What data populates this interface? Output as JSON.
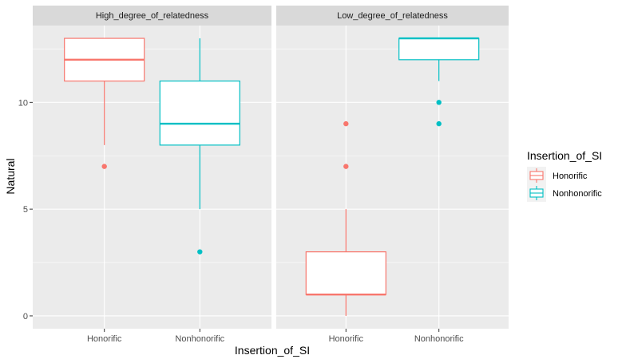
{
  "chart_data": {
    "type": "boxplot",
    "facet_by": "degree_of_relatedness",
    "xlabel": "Insertion_of_SI",
    "ylabel": "Natural",
    "ylim": [
      -0.6,
      13.6
    ],
    "y_ticks": [
      0,
      5,
      10
    ],
    "y_tick_labels": [
      "0",
      "5",
      "10"
    ],
    "categories": [
      "Honorific",
      "Nonhonorific"
    ],
    "grid": true,
    "legend": {
      "title": "Insertion_of_SI",
      "position": "right",
      "items": [
        {
          "label": "Honorific",
          "color": "#F8766D"
        },
        {
          "label": "Nonhonorific",
          "color": "#00BFC4"
        }
      ]
    },
    "panels": [
      {
        "title": "High_degree_of_relatedness",
        "boxes": [
          {
            "category": "Honorific",
            "color": "#F8766D",
            "min": 8,
            "q1": 11,
            "median": 12,
            "q3": 13,
            "max": 13,
            "outliers": [
              7
            ]
          },
          {
            "category": "Nonhonorific",
            "color": "#00BFC4",
            "min": 5,
            "q1": 8,
            "median": 9,
            "q3": 11,
            "max": 13,
            "outliers": [
              3
            ]
          }
        ]
      },
      {
        "title": "Low_degree_of_relatedness",
        "boxes": [
          {
            "category": "Honorific",
            "color": "#F8766D",
            "min": 0,
            "q1": 1,
            "median": 1,
            "q3": 3,
            "max": 5,
            "outliers": [
              7,
              9
            ]
          },
          {
            "category": "Nonhonorific",
            "color": "#00BFC4",
            "min": 11,
            "q1": 12,
            "median": 13,
            "q3": 13,
            "max": 13,
            "outliers": [
              9,
              10
            ]
          }
        ]
      }
    ]
  }
}
